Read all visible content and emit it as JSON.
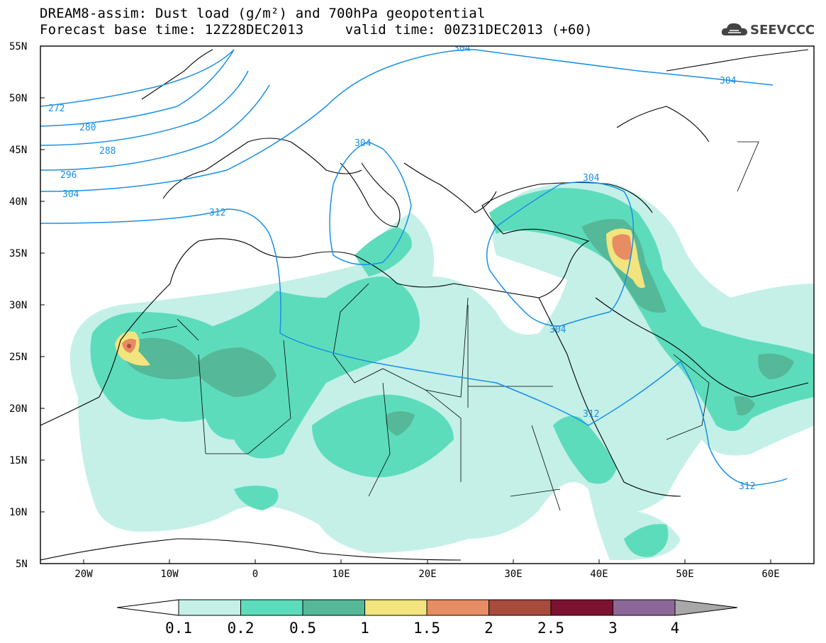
{
  "header": {
    "title_line1": "DREAM8-assim: Dust load (g/m²) and 700hPa geopotential",
    "title_line2": "Forecast base time: 12Z28DEC2013     valid time: 00Z31DEC2013 (+60)",
    "logo_text": "SEEVCCC"
  },
  "axes": {
    "lat_labels": [
      "55N",
      "50N",
      "45N",
      "40N",
      "35N",
      "30N",
      "25N",
      "20N",
      "15N",
      "10N",
      "5N"
    ],
    "lon_labels": [
      "20W",
      "10W",
      "0",
      "10E",
      "20E",
      "30E",
      "40E",
      "50E",
      "60E"
    ]
  },
  "contours": {
    "color": "#1a8fe6",
    "labels": [
      "272",
      "280",
      "288",
      "296",
      "304",
      "312",
      "304",
      "304",
      "304",
      "304",
      "312",
      "312",
      "304"
    ]
  },
  "colorbar": {
    "ticks": [
      "0.1",
      "0.2",
      "0.5",
      "1",
      "1.5",
      "2",
      "2.5",
      "3",
      "4"
    ],
    "colors": [
      "#c4f0e8",
      "#5ddcbc",
      "#55b898",
      "#f2e47e",
      "#e88c64",
      "#a84a3c",
      "#7c1230",
      "#8c6898",
      "#a8a8a8"
    ]
  },
  "dust_colors": {
    "light": "#c4f0e8",
    "medium": "#5ddcbc",
    "dark": "#55b898",
    "yellow": "#f2e47e",
    "orange": "#e88c64",
    "brown": "#a84a3c"
  }
}
